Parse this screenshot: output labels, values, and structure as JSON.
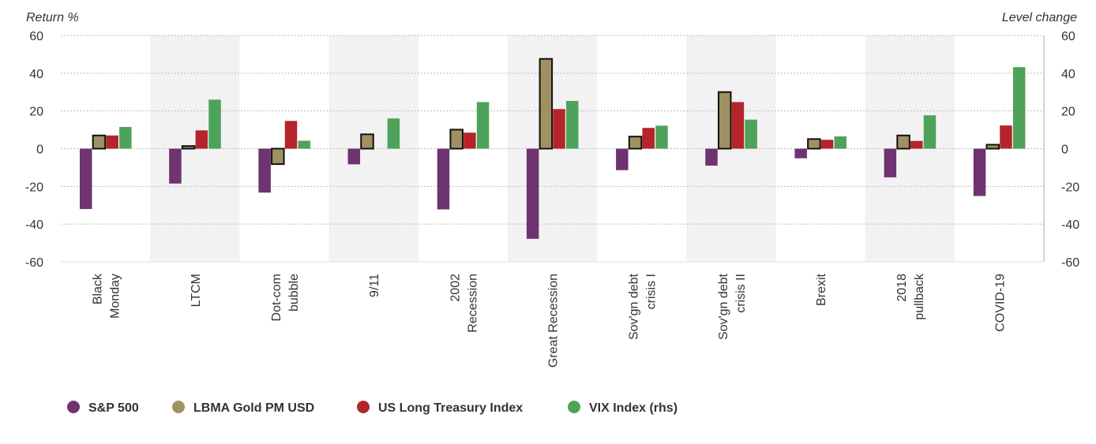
{
  "chart_data": {
    "type": "bar",
    "ylabel_left": "Return %",
    "ylabel_right": "Level change",
    "ylim": [
      -60,
      60
    ],
    "yticks": [
      60,
      40,
      20,
      0,
      -20,
      -40,
      -60
    ],
    "grid": true,
    "legend_placement": "bottom",
    "categories": [
      [
        "Black",
        "Monday"
      ],
      [
        "LTCM"
      ],
      [
        "Dot-com",
        "bubble"
      ],
      [
        "9/11"
      ],
      [
        "2002",
        "Recession"
      ],
      [
        "Great Recession"
      ],
      [
        "Sov'gn debt",
        "crisis I"
      ],
      [
        "Sov'gn debt",
        "crisis II"
      ],
      [
        "Brexit"
      ],
      [
        "2018",
        "pullback"
      ],
      [
        "COVID-19"
      ]
    ],
    "series": [
      {
        "name": "S&P 500",
        "color": "#6e3370",
        "values": [
          -32,
          -18.5,
          -23.3,
          -8.3,
          -32.2,
          -47.8,
          -11.4,
          -9,
          -5.1,
          -15.2,
          -25.1
        ]
      },
      {
        "name": "LBMA Gold PM USD",
        "color": "#a09163",
        "outlined": true,
        "values": [
          7,
          1.4,
          -8.2,
          7.6,
          10.1,
          47.6,
          6.4,
          30,
          5.1,
          7,
          2.1
        ]
      },
      {
        "name": "US Long Treasury Index",
        "color": "#b5242b",
        "values": [
          7,
          9.7,
          14.7,
          0,
          8.5,
          21,
          11,
          24.7,
          4.7,
          4.1,
          12.3
        ]
      },
      {
        "name": "VIX Index (rhs)",
        "color": "#4ea25a",
        "values": [
          11.5,
          26,
          4.2,
          16,
          24.7,
          25.3,
          12.2,
          15.4,
          6.5,
          17.7,
          43.2
        ]
      }
    ]
  }
}
